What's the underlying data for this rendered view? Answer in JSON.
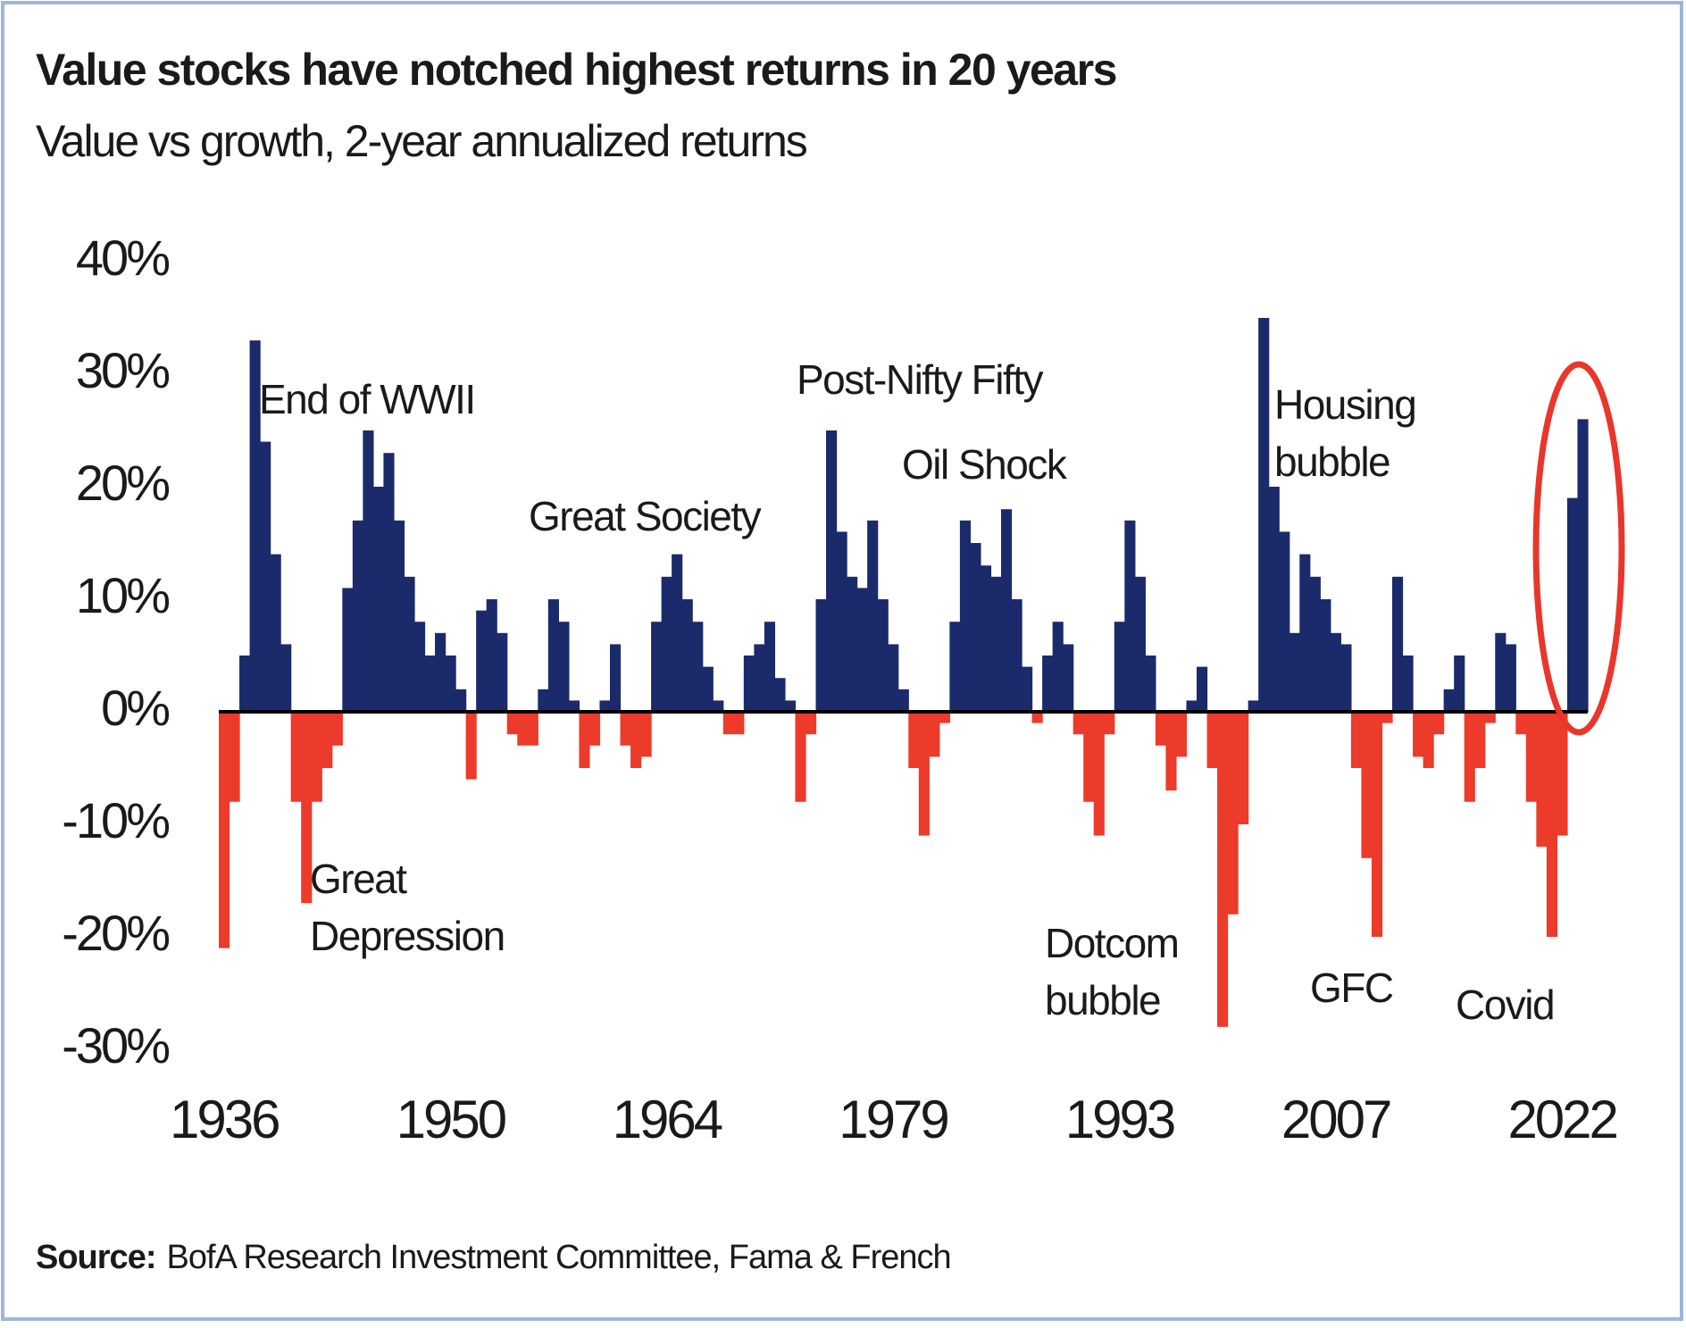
{
  "chart_data": {
    "type": "bar",
    "title": "Value stocks have notched highest returns in 20 years",
    "subtitle": "Value vs growth, 2-year annualized returns",
    "categories": [
      "1936",
      null,
      null,
      null,
      null,
      null,
      null,
      null,
      null,
      null,
      null,
      null,
      null,
      null,
      null,
      null,
      null,
      null,
      null,
      null,
      null,
      null,
      "1950",
      null,
      null,
      null,
      null,
      null,
      null,
      null,
      null,
      null,
      null,
      null,
      null,
      null,
      null,
      null,
      null,
      null,
      null,
      null,
      null,
      "1964",
      null,
      null,
      null,
      null,
      null,
      null,
      null,
      null,
      null,
      null,
      null,
      null,
      null,
      null,
      null,
      null,
      null,
      null,
      null,
      null,
      null,
      "1979",
      null,
      null,
      null,
      null,
      null,
      null,
      null,
      null,
      null,
      null,
      null,
      null,
      null,
      null,
      null,
      null,
      null,
      null,
      null,
      null,
      null,
      "1993",
      null,
      null,
      null,
      null,
      null,
      null,
      null,
      null,
      null,
      null,
      null,
      null,
      null,
      null,
      null,
      null,
      null,
      null,
      null,
      null,
      "2007",
      null,
      null,
      null,
      null,
      null,
      null,
      null,
      null,
      null,
      null,
      null,
      null,
      null,
      null,
      null,
      null,
      null,
      null,
      null,
      null,
      null,
      "2022",
      null,
      null
    ],
    "values": [
      -21,
      -8,
      5,
      33,
      24,
      14,
      6,
      -8,
      -17,
      -8,
      -5,
      -3,
      11,
      17,
      25,
      20,
      23,
      17,
      12,
      8,
      5,
      7,
      5,
      2,
      -6,
      9,
      10,
      7,
      -2,
      -3,
      -3,
      2,
      10,
      8,
      1,
      -5,
      -3,
      1,
      6,
      -3,
      -5,
      -4,
      8,
      12,
      14,
      10,
      8,
      4,
      1,
      -2,
      -2,
      5,
      6,
      8,
      3,
      1,
      -8,
      -2,
      10,
      25,
      16,
      12,
      11,
      17,
      10,
      6,
      2,
      -5,
      -11,
      -4,
      -1,
      8,
      17,
      15,
      13,
      12,
      18,
      10,
      4,
      -1,
      5,
      8,
      6,
      -2,
      -8,
      -11,
      -2,
      8,
      17,
      12,
      5,
      -3,
      -7,
      -4,
      1,
      4,
      -5,
      -28,
      -18,
      -10,
      1,
      35,
      20,
      16,
      7,
      14,
      12,
      10,
      7,
      6,
      -5,
      -13,
      -20,
      -1,
      12,
      5,
      -4,
      -5,
      -2,
      2,
      5,
      -8,
      -5,
      -1,
      7,
      6,
      -2,
      -8,
      -12,
      -20,
      -11,
      19,
      26
    ],
    "positive_color": "#1b2a6b",
    "negative_color": "#ec3a2b",
    "ylim": [
      -30,
      40
    ],
    "yticks": [
      {
        "value": 40,
        "label": "40%"
      },
      {
        "value": 30,
        "label": "30%"
      },
      {
        "value": 20,
        "label": "20%"
      },
      {
        "value": 10,
        "label": "10%"
      },
      {
        "value": 0,
        "label": "0%"
      },
      {
        "value": -10,
        "label": "-10%"
      },
      {
        "value": -20,
        "label": "-20%"
      },
      {
        "value": -30,
        "label": "-30%"
      }
    ],
    "grid": false,
    "annotations": [
      [
        "End of WWII"
      ],
      [
        "Great",
        "Depression"
      ],
      [
        "Great Society"
      ],
      [
        "Post-Nifty Fifty"
      ],
      [
        "Oil Shock"
      ],
      [
        "Dotcom",
        "bubble"
      ],
      [
        "Housing",
        "bubble"
      ],
      [
        "GFC"
      ],
      [
        "Covid"
      ]
    ],
    "source_label": "Source:",
    "source_text": "BofA Research Investment Committee, Fama & French"
  }
}
